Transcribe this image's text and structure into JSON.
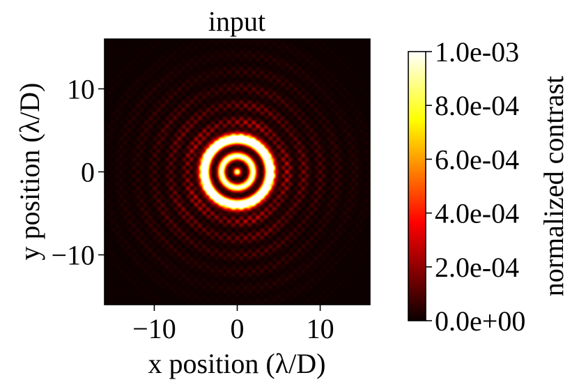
{
  "chart_data": {
    "type": "heatmap",
    "title": "input",
    "xlabel": "x position (λ/D)",
    "ylabel": "y position (λ/D)",
    "xlim": [
      -16,
      16
    ],
    "ylim": [
      -16,
      16
    ],
    "xticks": [
      -10,
      0,
      10
    ],
    "yticks": [
      -10,
      0,
      10
    ],
    "colormap": "hot",
    "colorbar": {
      "label": "normalized contrast",
      "range": [
        0.0,
        0.001
      ],
      "ticks": [
        0.0,
        0.0002,
        0.0004,
        0.0006,
        0.0008,
        0.001
      ],
      "tick_labels": [
        "0.0e+00",
        "2.0e-04",
        "4.0e-04",
        "6.0e-04",
        "8.0e-04",
        "1.0e-03"
      ],
      "colors": [
        "#0b0000",
        "#ff0000",
        "#ffff00",
        "#ffffff"
      ]
    },
    "features": {
      "dark_core_radius": 0.9,
      "inner_ring_radius": 1.9,
      "bright_ring_radius": 3.9,
      "halo_extent": 13
    }
  }
}
